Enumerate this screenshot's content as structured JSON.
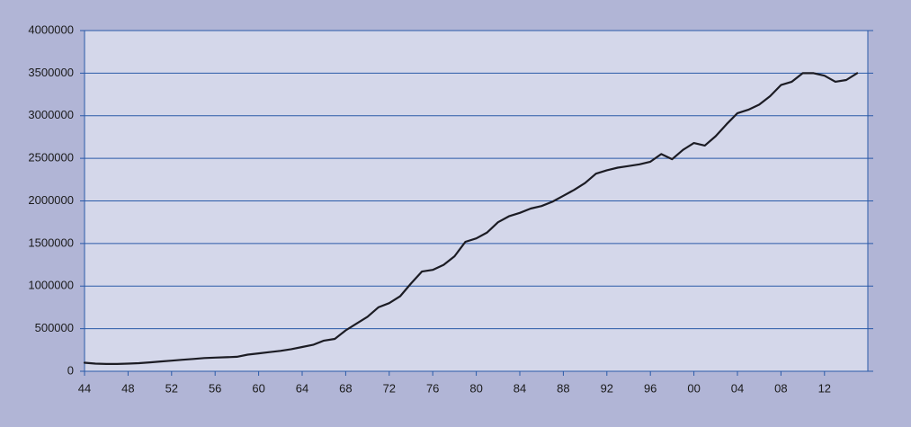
{
  "chart_data": {
    "type": "line",
    "categories": [
      "44",
      null,
      null,
      null,
      "48",
      null,
      null,
      null,
      "52",
      null,
      null,
      null,
      "56",
      null,
      null,
      null,
      "60",
      null,
      null,
      null,
      "64",
      null,
      null,
      null,
      "68",
      null,
      null,
      null,
      "72",
      null,
      null,
      null,
      "76",
      null,
      null,
      null,
      "80",
      null,
      null,
      null,
      "84",
      null,
      null,
      null,
      "88",
      null,
      null,
      null,
      "92",
      null,
      null,
      null,
      "96",
      null,
      null,
      null,
      "00",
      null,
      null,
      null,
      "04",
      null,
      null,
      null,
      "08",
      null,
      null,
      null,
      "12",
      null,
      null,
      null
    ],
    "values": [
      100000,
      90000,
      85000,
      85000,
      90000,
      95000,
      105000,
      115000,
      125000,
      135000,
      145000,
      155000,
      160000,
      165000,
      170000,
      195000,
      210000,
      225000,
      240000,
      260000,
      285000,
      310000,
      360000,
      380000,
      480000,
      560000,
      640000,
      750000,
      800000,
      880000,
      1030000,
      1170000,
      1190000,
      1250000,
      1350000,
      1520000,
      1560000,
      1630000,
      1750000,
      1820000,
      1860000,
      1910000,
      1940000,
      1990000,
      2060000,
      2130000,
      2210000,
      2320000,
      2360000,
      2390000,
      2410000,
      2430000,
      2460000,
      2550000,
      2490000,
      2600000,
      2680000,
      2650000,
      2760000,
      2900000,
      3030000,
      3070000,
      3130000,
      3230000,
      3360000,
      3400000,
      3500000,
      3500000,
      3470000,
      3400000,
      3420000,
      3500000
    ],
    "color": "#1c1c24",
    "ylim": [
      0,
      4000000
    ],
    "yticks": [
      0,
      500000,
      1000000,
      1500000,
      2000000,
      2500000,
      3000000,
      3500000,
      4000000
    ],
    "grid": true
  }
}
